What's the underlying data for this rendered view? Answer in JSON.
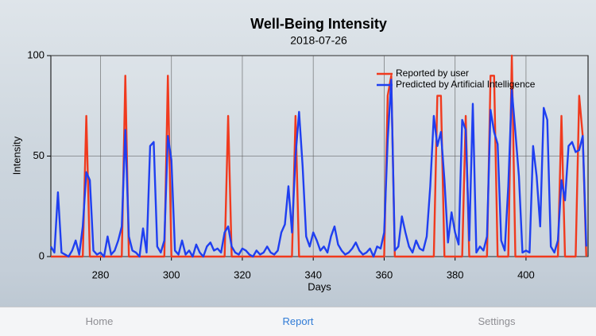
{
  "chart_data": {
    "type": "line",
    "title": "Well-Being Intensity",
    "subtitle": "2018-07-26",
    "x_label": "Days",
    "y_label": "Intensity",
    "xlim": [
      266,
      417.5
    ],
    "xticks": [
      280,
      300,
      320,
      340,
      360,
      380,
      400
    ],
    "ylim": [
      0,
      100
    ],
    "yticks": [
      0,
      50,
      100
    ],
    "grid": true,
    "legend": "upper right",
    "x": [
      266,
      267,
      268,
      269,
      270,
      271,
      272,
      273,
      274,
      275,
      276,
      277,
      278,
      279,
      280,
      281,
      282,
      283,
      284,
      285,
      286,
      287,
      288,
      289,
      290,
      291,
      292,
      293,
      294,
      295,
      296,
      297,
      298,
      299,
      300,
      301,
      302,
      303,
      304,
      305,
      306,
      307,
      308,
      309,
      310,
      311,
      312,
      313,
      314,
      315,
      316,
      317,
      318,
      319,
      320,
      321,
      322,
      323,
      324,
      325,
      326,
      327,
      328,
      329,
      330,
      331,
      332,
      333,
      334,
      335,
      336,
      337,
      338,
      339,
      340,
      341,
      342,
      343,
      344,
      345,
      346,
      347,
      348,
      349,
      350,
      351,
      352,
      353,
      354,
      355,
      356,
      357,
      358,
      359,
      360,
      361,
      362,
      363,
      364,
      365,
      366,
      367,
      368,
      369,
      370,
      371,
      372,
      373,
      374,
      375,
      376,
      377,
      378,
      379,
      380,
      381,
      382,
      383,
      384,
      385,
      386,
      387,
      388,
      389,
      390,
      391,
      392,
      393,
      394,
      395,
      396,
      397,
      398,
      399,
      400,
      401,
      402,
      403,
      404,
      405,
      406,
      407,
      408,
      409,
      410,
      411,
      412,
      413,
      414,
      415,
      416,
      417
    ],
    "series": [
      {
        "name": "Reported by user",
        "color": "#f03a1e",
        "values": [
          0,
          0,
          0,
          0,
          0,
          0,
          0,
          0,
          0,
          0,
          70,
          0,
          0,
          0,
          0,
          0,
          0,
          0,
          0,
          0,
          0,
          90,
          0,
          0,
          0,
          0,
          0,
          0,
          0,
          0,
          0,
          0,
          0,
          90,
          0,
          0,
          0,
          0,
          0,
          0,
          0,
          0,
          0,
          0,
          0,
          0,
          0,
          0,
          0,
          0,
          70,
          0,
          0,
          0,
          0,
          0,
          0,
          0,
          0,
          0,
          0,
          0,
          0,
          0,
          0,
          0,
          0,
          0,
          0,
          70,
          0,
          0,
          0,
          0,
          0,
          0,
          0,
          0,
          0,
          0,
          0,
          0,
          0,
          0,
          0,
          0,
          0,
          0,
          0,
          0,
          0,
          0,
          0,
          0,
          0,
          80,
          90,
          0,
          0,
          0,
          0,
          0,
          0,
          0,
          0,
          0,
          0,
          0,
          0,
          80,
          80,
          0,
          0,
          0,
          0,
          0,
          0,
          70,
          0,
          0,
          0,
          0,
          0,
          0,
          90,
          90,
          0,
          0,
          0,
          0,
          100,
          0,
          0,
          0,
          0,
          0,
          0,
          0,
          0,
          0,
          0,
          0,
          0,
          0,
          70,
          0,
          0,
          0,
          0,
          80,
          60,
          0
        ]
      },
      {
        "name": "Predicted by Artificial Intelligence",
        "color": "#1f3ff0",
        "values": [
          5,
          2,
          32,
          2,
          1,
          0,
          3,
          8,
          1,
          15,
          42,
          38,
          3,
          1,
          2,
          0,
          10,
          1,
          3,
          8,
          15,
          63,
          10,
          3,
          2,
          0,
          14,
          2,
          55,
          57,
          5,
          2,
          8,
          60,
          48,
          3,
          1,
          8,
          1,
          3,
          0,
          6,
          2,
          0,
          5,
          7,
          3,
          4,
          2,
          12,
          15,
          5,
          2,
          1,
          4,
          3,
          1,
          0,
          3,
          1,
          2,
          5,
          2,
          1,
          3,
          12,
          16,
          35,
          12,
          50,
          72,
          45,
          10,
          5,
          12,
          8,
          3,
          5,
          2,
          10,
          15,
          6,
          3,
          1,
          2,
          4,
          7,
          3,
          1,
          2,
          4,
          0,
          5,
          4,
          12,
          58,
          88,
          3,
          5,
          20,
          12,
          5,
          2,
          8,
          4,
          3,
          10,
          35,
          70,
          55,
          62,
          38,
          7,
          22,
          12,
          6,
          68,
          63,
          8,
          76,
          2,
          5,
          3,
          10,
          73,
          62,
          56,
          8,
          3,
          35,
          83,
          62,
          40,
          2,
          3,
          2,
          55,
          40,
          15,
          74,
          68,
          5,
          2,
          8,
          38,
          28,
          55,
          57,
          52,
          53,
          60,
          5
        ]
      }
    ]
  },
  "tab_bar": {
    "items": [
      "Home",
      "Report",
      "Settings"
    ],
    "selected": 1
  }
}
